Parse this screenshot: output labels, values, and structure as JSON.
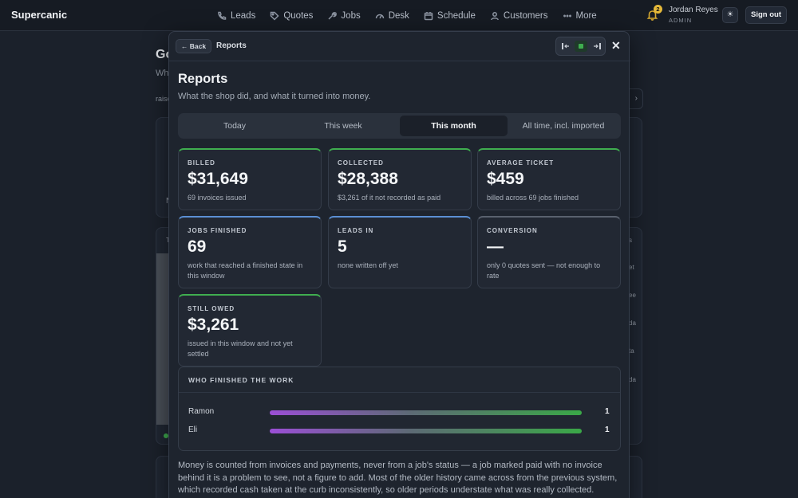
{
  "app": {
    "brand": "Supercanic"
  },
  "nav": {
    "items": [
      {
        "label": "Leads",
        "icon": "phone-icon"
      },
      {
        "label": "Quotes",
        "icon": "tag-icon"
      },
      {
        "label": "Jobs",
        "icon": "wrench-icon"
      },
      {
        "label": "Desk",
        "icon": "gauge-icon"
      },
      {
        "label": "Schedule",
        "icon": "calendar-icon"
      },
      {
        "label": "Customers",
        "icon": "person-icon"
      },
      {
        "label": "More",
        "icon": "dots-icon"
      }
    ]
  },
  "header": {
    "notification_count": "2",
    "user_name": "Jordan Reyes",
    "user_role": "ADMIN",
    "theme_icon": "☀",
    "signout_label": "Sign out"
  },
  "background": {
    "title_fragment": "Go",
    "sub_fragment": "Wh",
    "raise_fragment": "raise",
    "card_fragments": [
      "N",
      "T",
      "s",
      "et",
      "ee",
      "da",
      "ta",
      "da"
    ]
  },
  "modal": {
    "back_label": "← Back",
    "crumb": "Reports",
    "title": "Reports",
    "subtitle": "What the shop did, and what it turned into money.",
    "close_label": "✕",
    "tabs": [
      "Today",
      "This week",
      "This month",
      "All time, incl. imported"
    ],
    "active_tab": "This month",
    "stats": [
      {
        "label": "BILLED",
        "value": "$31,649",
        "note": "69 invoices issued",
        "accent": "green"
      },
      {
        "label": "COLLECTED",
        "value": "$28,388",
        "note": "$3,261 of it not recorded as paid",
        "accent": "green"
      },
      {
        "label": "AVERAGE TICKET",
        "value": "$459",
        "note": "billed across 69 jobs finished",
        "accent": "green"
      },
      {
        "label": "JOBS FINISHED",
        "value": "69",
        "note": "work that reached a finished state in this window",
        "accent": "blue"
      },
      {
        "label": "LEADS IN",
        "value": "5",
        "note": "none written off yet",
        "accent": "blue"
      },
      {
        "label": "CONVERSION",
        "value": "—",
        "note": "only 0 quotes sent — not enough to rate",
        "accent": "grey"
      },
      {
        "label": "STILL OWED",
        "value": "$3,261",
        "note": "issued in this window and not yet settled",
        "accent": "green"
      }
    ],
    "workers": {
      "title": "WHO FINISHED THE WORK",
      "rows": [
        {
          "name": "Ramon",
          "count": "1",
          "share": 1.0
        },
        {
          "name": "Eli",
          "count": "1",
          "share": 1.0
        }
      ]
    },
    "footnote": "Money is counted from invoices and payments, never from a job's status — a job marked paid with no invoice behind it is a problem to see, not a figure to add. Most of the older history came across from the previous system, which recorded cash taken at the curb inconsistently, so older periods understate what was really collected."
  },
  "colors": {
    "accent_green": "#3fae4f",
    "accent_blue": "#5b8fd3",
    "accent_grey": "#59616e",
    "badge_yellow": "#e5b93a"
  }
}
